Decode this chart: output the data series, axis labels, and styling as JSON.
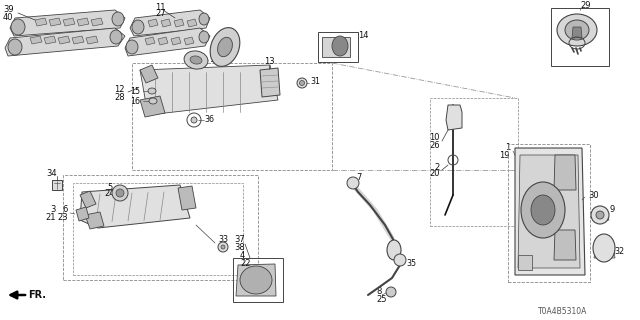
{
  "bg_color": "#ffffff",
  "diagram_code": "T0A4B5310A",
  "gray": "#444444",
  "lgray": "#aaaaaa",
  "dgray": "#111111"
}
